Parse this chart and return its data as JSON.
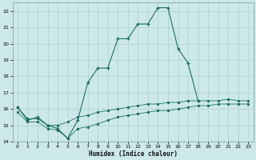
{
  "xlabel": "Humidex (Indice chaleur)",
  "background_color": "#cde8e8",
  "grid_color": "#aed4d4",
  "line_color": "#1a7068",
  "ylim": [
    14,
    22.5
  ],
  "xlim": [
    -0.5,
    23.5
  ],
  "yticks": [
    14,
    15,
    16,
    17,
    18,
    19,
    20,
    21,
    22
  ],
  "xticks": [
    0,
    1,
    2,
    3,
    4,
    5,
    6,
    7,
    8,
    9,
    10,
    11,
    12,
    13,
    14,
    15,
    16,
    17,
    18,
    19,
    20,
    21,
    22,
    23
  ],
  "xtick_labels": [
    "0",
    "1",
    "2",
    "3",
    "4",
    "5",
    "6",
    "7",
    "8",
    "9",
    "10",
    "11",
    "12",
    "13",
    "14",
    "15",
    "16",
    "17",
    "18",
    "19",
    "20",
    "21",
    "22",
    "23"
  ],
  "series_main_x": [
    0,
    1,
    2,
    3,
    4,
    5,
    6,
    7,
    8,
    9,
    10,
    11,
    12,
    13,
    14,
    15,
    16,
    17,
    18
  ],
  "series_main_y": [
    16.1,
    15.3,
    15.5,
    15.0,
    14.8,
    14.2,
    15.3,
    17.6,
    18.5,
    18.5,
    20.3,
    20.3,
    21.2,
    21.2,
    22.2,
    22.2,
    19.7,
    18.8,
    16.5
  ],
  "series_upper_x": [
    0,
    1,
    2,
    3,
    4,
    5,
    6,
    7,
    8,
    9,
    10,
    11,
    12,
    13,
    14,
    15,
    16,
    17,
    18,
    19,
    20,
    21,
    22,
    23
  ],
  "series_upper_y": [
    16.1,
    15.4,
    15.4,
    15.0,
    15.0,
    15.2,
    15.5,
    15.6,
    15.8,
    15.9,
    16.0,
    16.1,
    16.2,
    16.3,
    16.3,
    16.4,
    16.4,
    16.5,
    16.5,
    16.5,
    16.5,
    16.6,
    16.5,
    16.5
  ],
  "series_lower_x": [
    0,
    1,
    2,
    3,
    4,
    5,
    6,
    7,
    8,
    9,
    10,
    11,
    12,
    13,
    14,
    15,
    16,
    17,
    18,
    19,
    20,
    21,
    22,
    23
  ],
  "series_lower_y": [
    15.8,
    15.2,
    15.2,
    14.8,
    14.7,
    14.2,
    14.8,
    14.9,
    15.1,
    15.3,
    15.5,
    15.6,
    15.7,
    15.8,
    15.9,
    15.9,
    16.0,
    16.1,
    16.2,
    16.2,
    16.3,
    16.3,
    16.3,
    16.3
  ]
}
